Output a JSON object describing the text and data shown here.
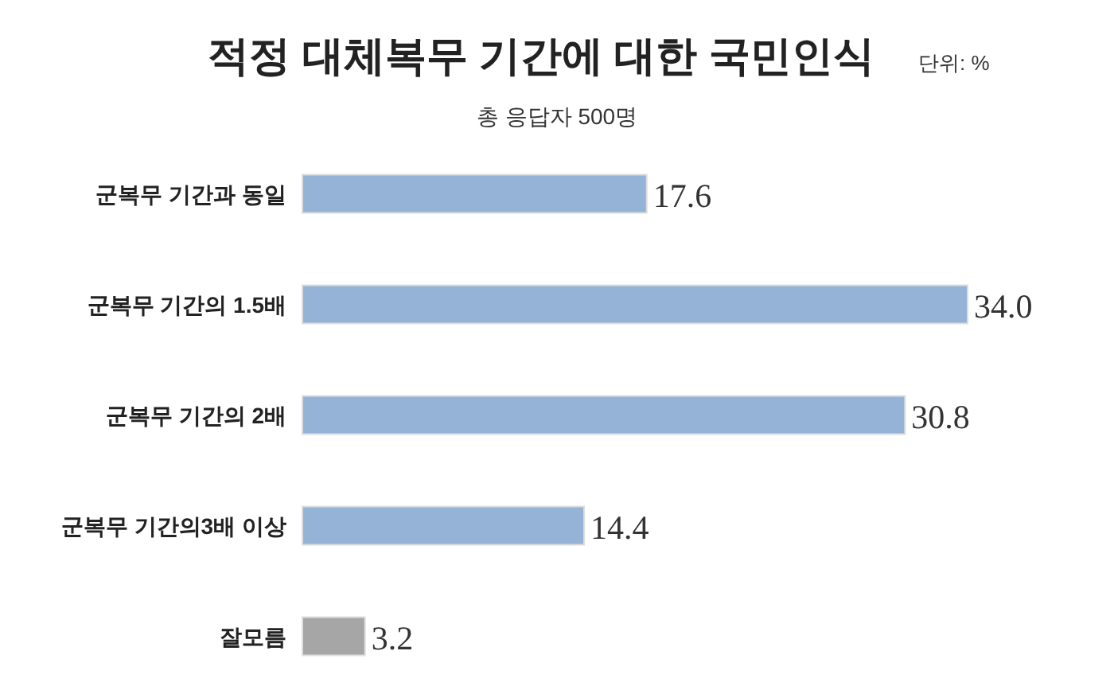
{
  "chart_data": {
    "type": "bar",
    "orientation": "horizontal",
    "title": "적정 대체복무 기간에 대한 국민인식",
    "subtitle": "총 응답자 500명",
    "annotations": [
      "단위: %"
    ],
    "categories": [
      "군복무 기간과 동일",
      "군복무 기간의 1.5배",
      "군복무 기간의 2배",
      "군복무 기간의3배 이상",
      "잘모름"
    ],
    "values": [
      17.6,
      34.0,
      30.8,
      14.4,
      3.2
    ],
    "colors": [
      "#95b3d7",
      "#95b3d7",
      "#95b3d7",
      "#95b3d7",
      "#a6a6a6"
    ],
    "value_labels": [
      "17.6",
      "34.0",
      "30.8",
      "14.4",
      "3.2"
    ]
  }
}
